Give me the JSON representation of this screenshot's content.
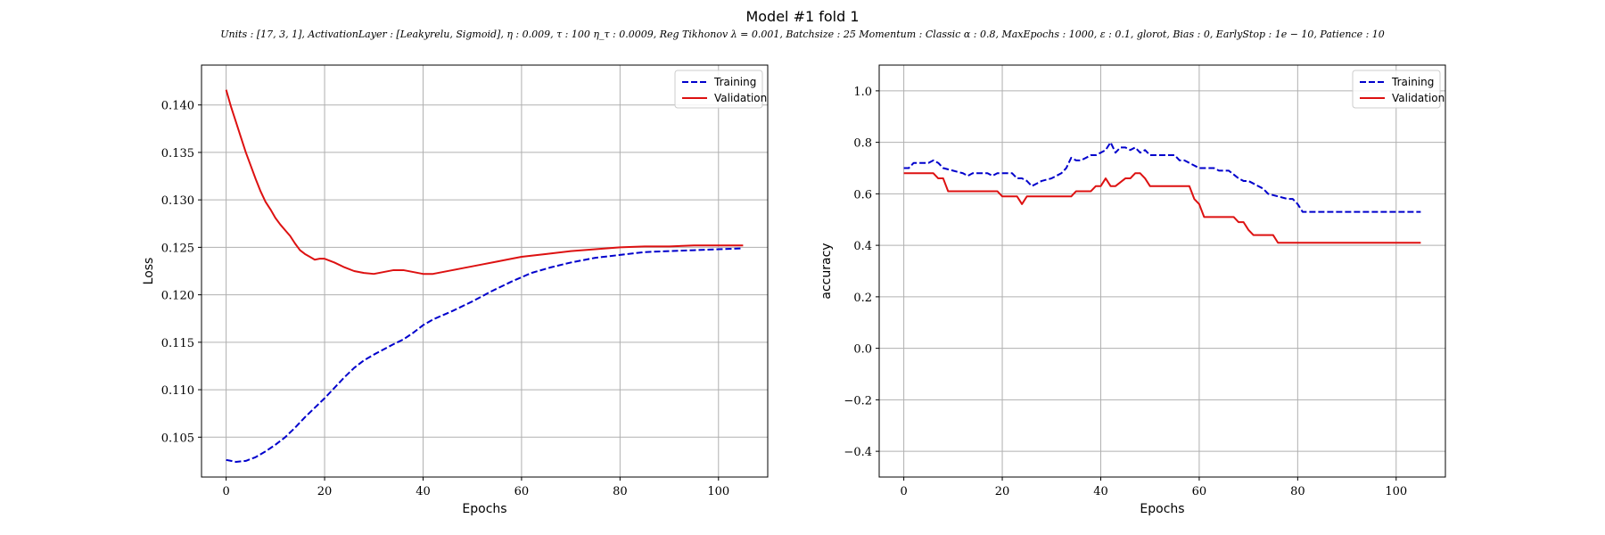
{
  "figure": {
    "title": "Model #1 fold 1",
    "subtitle": "Units : [17, 3, 1], ActivationLayer : [Leakyrelu, Sigmoid], η : 0.009, τ : 100 η_τ : 0.0009, Reg Tikhonov λ = 0.001, Batchsize : 25 Momentum : Classic α : 0.8, MaxEpochs : 1000, ε : 0.1, glorot, Bias : 0, EarlyStop : 1e − 10, Patience : 10"
  },
  "chart_data": [
    {
      "type": "line",
      "title": "",
      "xlabel": "Epochs",
      "ylabel": "Loss",
      "xlim": [
        -5,
        110
      ],
      "ylim": [
        0.1008,
        0.1442
      ],
      "xticks": [
        0,
        20,
        40,
        60,
        80,
        100
      ],
      "yticks": [
        0.105,
        0.11,
        0.115,
        0.12,
        0.125,
        0.13,
        0.135,
        0.14
      ],
      "ytick_labels": [
        "0.105",
        "0.110",
        "0.115",
        "0.120",
        "0.125",
        "0.130",
        "0.135",
        "0.140"
      ],
      "grid": true,
      "legend_position": "top-right",
      "series": [
        {
          "name": "Training",
          "color": "#0000cc",
          "style": "dashed",
          "x": [
            0,
            2,
            4,
            6,
            8,
            10,
            12,
            14,
            16,
            18,
            20,
            22,
            24,
            26,
            28,
            30,
            34,
            36,
            38,
            40,
            42,
            46,
            50,
            54,
            58,
            62,
            66,
            70,
            75,
            80,
            85,
            90,
            95,
            100,
            105
          ],
          "y": [
            0.1026,
            0.1024,
            0.1025,
            0.1029,
            0.1035,
            0.1042,
            0.105,
            0.106,
            0.1071,
            0.1081,
            0.1091,
            0.1102,
            0.1113,
            0.1123,
            0.1131,
            0.1137,
            0.1148,
            0.1153,
            0.116,
            0.1168,
            0.1174,
            0.1183,
            0.1193,
            0.1204,
            0.1214,
            0.1223,
            0.1229,
            0.1234,
            0.1239,
            0.1242,
            0.1245,
            0.1246,
            0.1247,
            0.1248,
            0.1249
          ]
        },
        {
          "name": "Validation",
          "color": "#dd1111",
          "style": "solid",
          "x": [
            0,
            1,
            2,
            3,
            4,
            5,
            6,
            7,
            8,
            9,
            10,
            11,
            12,
            13,
            14,
            15,
            16,
            17,
            18,
            19,
            20,
            22,
            24,
            26,
            28,
            30,
            32,
            34,
            36,
            38,
            40,
            42,
            44,
            46,
            48,
            50,
            52,
            55,
            58,
            60,
            65,
            70,
            75,
            80,
            85,
            90,
            95,
            100,
            105
          ],
          "y": [
            0.1416,
            0.1398,
            0.1382,
            0.1366,
            0.135,
            0.1336,
            0.1322,
            0.1309,
            0.1298,
            0.129,
            0.1281,
            0.1274,
            0.1268,
            0.1262,
            0.1254,
            0.1247,
            0.1243,
            0.124,
            0.1237,
            0.1238,
            0.1238,
            0.1234,
            0.1229,
            0.1225,
            0.1223,
            0.1222,
            0.1224,
            0.1226,
            0.1226,
            0.1224,
            0.1222,
            0.1222,
            0.1224,
            0.1226,
            0.1228,
            0.123,
            0.1232,
            0.1235,
            0.1238,
            0.124,
            0.1243,
            0.1246,
            0.1248,
            0.125,
            0.1251,
            0.1251,
            0.1252,
            0.1252,
            0.1252
          ]
        }
      ]
    },
    {
      "type": "line",
      "title": "",
      "xlabel": "Epochs",
      "ylabel": "accuracy",
      "xlim": [
        -5,
        110
      ],
      "ylim": [
        -0.5,
        1.1
      ],
      "xticks": [
        0,
        20,
        40,
        60,
        80,
        100
      ],
      "yticks": [
        -0.4,
        -0.2,
        0.0,
        0.2,
        0.4,
        0.6,
        0.8,
        1.0
      ],
      "ytick_labels": [
        "−0.4",
        "−0.2",
        "0.0",
        "0.2",
        "0.4",
        "0.6",
        "0.8",
        "1.0"
      ],
      "grid": true,
      "legend_position": "top-right",
      "series": [
        {
          "name": "Training",
          "color": "#0000cc",
          "style": "dashed",
          "x": [
            0,
            1,
            2,
            4,
            5,
            6,
            7,
            8,
            10,
            12,
            13,
            14,
            17,
            18,
            19,
            20,
            22,
            23,
            24,
            25,
            26,
            28,
            30,
            31,
            32,
            33,
            34,
            35,
            36,
            37,
            38,
            39,
            40,
            41,
            42,
            43,
            44,
            45,
            46,
            47,
            48,
            49,
            50,
            51,
            55,
            56,
            57,
            58,
            59,
            60,
            63,
            64,
            65,
            66,
            68,
            69,
            70,
            71,
            72,
            73,
            74,
            76,
            78,
            79,
            80,
            81,
            85,
            90,
            95,
            100,
            105
          ],
          "y": [
            0.7,
            0.7,
            0.72,
            0.72,
            0.72,
            0.73,
            0.72,
            0.7,
            0.69,
            0.68,
            0.67,
            0.68,
            0.68,
            0.67,
            0.68,
            0.68,
            0.68,
            0.66,
            0.66,
            0.65,
            0.63,
            0.65,
            0.66,
            0.67,
            0.68,
            0.7,
            0.74,
            0.73,
            0.73,
            0.74,
            0.75,
            0.75,
            0.76,
            0.77,
            0.8,
            0.76,
            0.78,
            0.78,
            0.77,
            0.78,
            0.76,
            0.77,
            0.75,
            0.75,
            0.75,
            0.73,
            0.73,
            0.72,
            0.71,
            0.7,
            0.7,
            0.69,
            0.69,
            0.69,
            0.66,
            0.65,
            0.65,
            0.64,
            0.63,
            0.62,
            0.6,
            0.59,
            0.58,
            0.58,
            0.56,
            0.53,
            0.53,
            0.53,
            0.53,
            0.53,
            0.53
          ]
        },
        {
          "name": "Validation",
          "color": "#dd1111",
          "style": "solid",
          "x": [
            0,
            6,
            7,
            8,
            9,
            10,
            19,
            20,
            23,
            24,
            25,
            26,
            34,
            35,
            38,
            39,
            40,
            41,
            42,
            43,
            45,
            46,
            47,
            48,
            49,
            50,
            51,
            58,
            59,
            60,
            61,
            62,
            67,
            68,
            69,
            70,
            71,
            72,
            75,
            76,
            80,
            105
          ],
          "y": [
            0.68,
            0.68,
            0.66,
            0.66,
            0.61,
            0.61,
            0.61,
            0.59,
            0.59,
            0.56,
            0.59,
            0.59,
            0.59,
            0.61,
            0.61,
            0.63,
            0.63,
            0.66,
            0.63,
            0.63,
            0.66,
            0.66,
            0.68,
            0.68,
            0.66,
            0.63,
            0.63,
            0.63,
            0.58,
            0.56,
            0.51,
            0.51,
            0.51,
            0.49,
            0.49,
            0.46,
            0.44,
            0.44,
            0.44,
            0.41,
            0.41,
            0.41
          ]
        }
      ]
    }
  ]
}
